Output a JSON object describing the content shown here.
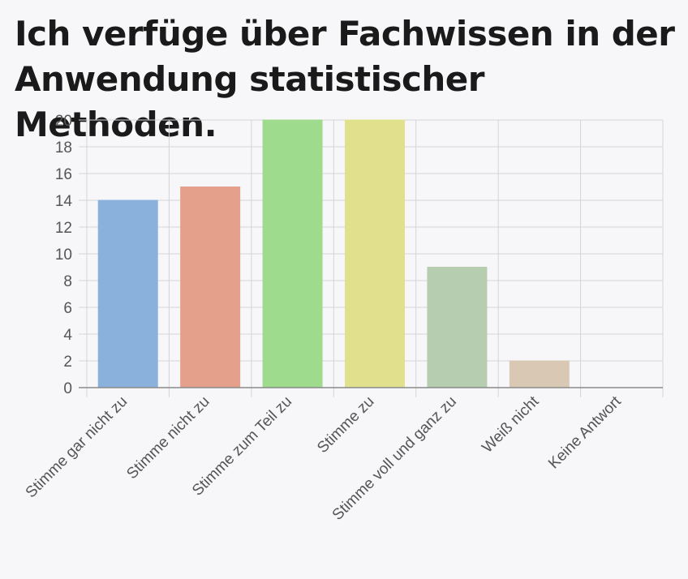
{
  "chart_data": {
    "type": "bar",
    "title": "Ich verfüge über Fachwissen in der Anwendung statistischer Methoden.",
    "categories": [
      "Stimme gar nicht zu",
      "Stimme nicht zu",
      "Stimme zum Teil zu",
      "Stimme zu",
      "Stimme voll und ganz zu",
      "Weiß nicht",
      "Keine Antwort"
    ],
    "values": [
      14,
      15,
      20,
      20,
      9,
      2,
      0
    ],
    "colors": [
      "#8ab1db",
      "#e5a08c",
      "#9edb8c",
      "#e1e08c",
      "#b7cdb0",
      "#d9c9b4",
      "#cccccc"
    ],
    "ylim": [
      0,
      20
    ],
    "yticks": [
      0,
      2,
      4,
      6,
      8,
      10,
      12,
      14,
      16,
      18,
      20
    ],
    "grid": true,
    "xlabel": "",
    "ylabel": ""
  }
}
